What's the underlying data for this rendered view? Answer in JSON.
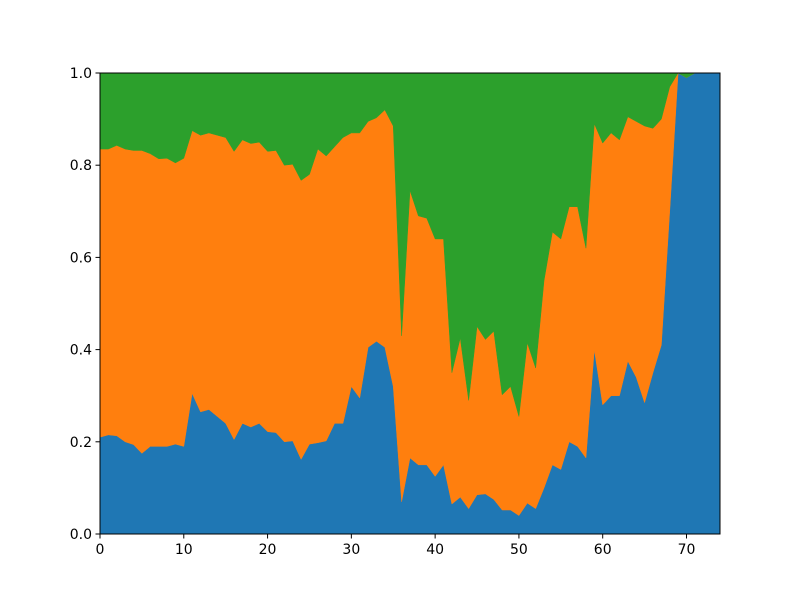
{
  "chart_data": {
    "type": "area",
    "stacked": true,
    "xlim": [
      0,
      74
    ],
    "ylim": [
      0,
      1
    ],
    "grid": false,
    "legend": "none",
    "xticks": [
      0,
      10,
      20,
      30,
      40,
      50,
      60,
      70
    ],
    "xtick_labels": [
      "0",
      "10",
      "20",
      "30",
      "40",
      "50",
      "60",
      "70"
    ],
    "yticks": [
      0,
      0.2,
      0.4,
      0.6,
      0.8,
      1.0
    ],
    "ytick_labels": [
      "0.0",
      "0.2",
      "0.4",
      "0.6",
      "0.8",
      "1.0"
    ],
    "x": [
      0,
      1,
      2,
      3,
      4,
      5,
      6,
      7,
      8,
      9,
      10,
      11,
      12,
      13,
      14,
      15,
      16,
      17,
      18,
      19,
      20,
      21,
      22,
      23,
      24,
      25,
      26,
      27,
      28,
      29,
      30,
      31,
      32,
      33,
      34,
      35,
      36,
      37,
      38,
      39,
      40,
      41,
      42,
      43,
      44,
      45,
      46,
      47,
      48,
      49,
      50,
      51,
      52,
      53,
      54,
      55,
      56,
      57,
      58,
      59,
      60,
      61,
      62,
      63,
      64,
      65,
      66,
      67,
      68,
      69,
      70,
      71,
      72,
      73,
      74
    ],
    "series": [
      {
        "color": "#1f77b4",
        "values": [
          0.21,
          0.215,
          0.213,
          0.2,
          0.194,
          0.175,
          0.19,
          0.19,
          0.19,
          0.195,
          0.19,
          0.305,
          0.265,
          0.27,
          0.255,
          0.24,
          0.205,
          0.24,
          0.232,
          0.24,
          0.222,
          0.22,
          0.2,
          0.202,
          0.162,
          0.195,
          0.198,
          0.202,
          0.24,
          0.24,
          0.32,
          0.295,
          0.405,
          0.418,
          0.405,
          0.32,
          0.07,
          0.165,
          0.15,
          0.15,
          0.125,
          0.15,
          0.065,
          0.08,
          0.055,
          0.085,
          0.087,
          0.075,
          0.052,
          0.052,
          0.04,
          0.067,
          0.055,
          0.1,
          0.15,
          0.14,
          0.2,
          0.19,
          0.165,
          0.4,
          0.28,
          0.3,
          0.3,
          0.375,
          0.34,
          0.285,
          0.35,
          0.41,
          0.7,
          1.0,
          0.99,
          1.0,
          1.0,
          1.0,
          1.0
        ]
      },
      {
        "color": "#ff7f0e",
        "values": [
          0.625,
          0.62,
          0.63,
          0.635,
          0.638,
          0.657,
          0.635,
          0.624,
          0.625,
          0.61,
          0.625,
          0.57,
          0.6,
          0.6,
          0.61,
          0.62,
          0.625,
          0.615,
          0.615,
          0.61,
          0.608,
          0.612,
          0.6,
          0.6,
          0.605,
          0.585,
          0.637,
          0.618,
          0.6,
          0.62,
          0.55,
          0.575,
          0.49,
          0.485,
          0.515,
          0.565,
          0.36,
          0.58,
          0.54,
          0.535,
          0.515,
          0.49,
          0.285,
          0.345,
          0.235,
          0.365,
          0.335,
          0.365,
          0.25,
          0.268,
          0.215,
          0.348,
          0.305,
          0.45,
          0.505,
          0.5,
          0.51,
          0.52,
          0.455,
          0.49,
          0.568,
          0.57,
          0.555,
          0.53,
          0.555,
          0.6,
          0.53,
          0.49,
          0.27,
          0.0,
          0.0,
          0.0,
          0.0,
          0.0,
          0.0
        ]
      },
      {
        "color": "#2ca02c",
        "values": [
          0.165,
          0.165,
          0.157,
          0.165,
          0.168,
          0.168,
          0.175,
          0.186,
          0.185,
          0.195,
          0.185,
          0.125,
          0.135,
          0.13,
          0.135,
          0.14,
          0.17,
          0.145,
          0.153,
          0.15,
          0.17,
          0.168,
          0.2,
          0.198,
          0.233,
          0.22,
          0.165,
          0.18,
          0.16,
          0.14,
          0.13,
          0.13,
          0.105,
          0.097,
          0.08,
          0.115,
          0.57,
          0.255,
          0.31,
          0.315,
          0.36,
          0.36,
          0.65,
          0.575,
          0.71,
          0.55,
          0.578,
          0.56,
          0.698,
          0.68,
          0.745,
          0.585,
          0.64,
          0.45,
          0.345,
          0.36,
          0.29,
          0.29,
          0.38,
          0.11,
          0.152,
          0.13,
          0.145,
          0.095,
          0.105,
          0.115,
          0.12,
          0.1,
          0.03,
          0.0,
          0.01,
          0.0,
          0.0,
          0.0,
          0.0
        ]
      }
    ]
  }
}
